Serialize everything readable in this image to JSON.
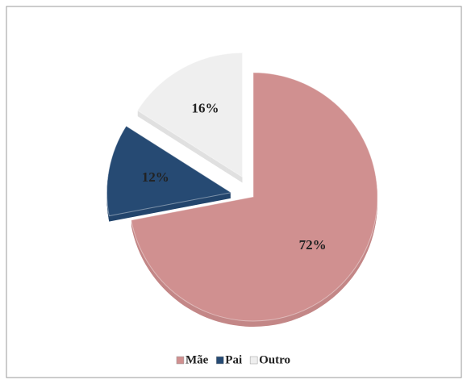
{
  "chart_data": {
    "type": "pie",
    "categories": [
      "Mãe",
      "Pai",
      "Outro"
    ],
    "values": [
      72,
      12,
      16
    ],
    "value_labels": [
      "72%",
      "12%",
      "16%"
    ],
    "colors": [
      "#d09090",
      "#264a73",
      "#efefef"
    ],
    "legend": "bottom"
  }
}
